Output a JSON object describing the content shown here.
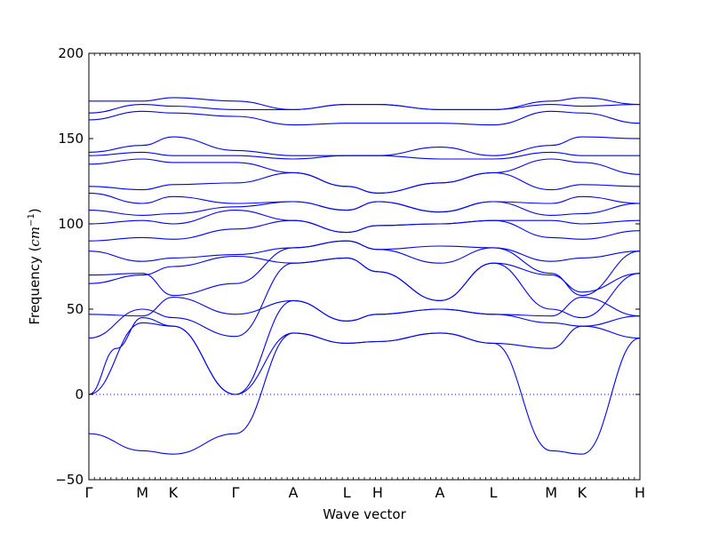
{
  "chart_data": {
    "type": "line",
    "title": "",
    "xlabel": "Wave vector",
    "ylabel": "Frequency ($cm^{-1}$)",
    "ylabel_parts": {
      "text": "Frequency (",
      "math": "cm",
      "sup": "−1",
      "close": ")"
    },
    "ylim": [
      -50,
      200
    ],
    "yticks": [
      -50,
      0,
      50,
      100,
      150,
      200
    ],
    "grid": false,
    "line_color": "#0000ff",
    "zero_line": {
      "y": 0,
      "style": "dotted",
      "color": "#0000ff"
    },
    "high_symmetry_points": [
      {
        "label": "Γ",
        "x": 0.0
      },
      {
        "label": "M",
        "x": 0.097
      },
      {
        "label": "K",
        "x": 0.153
      },
      {
        "label": "Γ",
        "x": 0.266
      },
      {
        "label": "A",
        "x": 0.371
      },
      {
        "label": "L",
        "x": 0.468
      },
      {
        "label": "H",
        "x": 0.524
      },
      {
        "label": "A",
        "x": 0.637
      },
      {
        "label": "L",
        "x": 0.734
      },
      {
        "label": "M",
        "x": 0.839
      },
      {
        "label": "K",
        "x": 0.895
      },
      {
        "label": "H",
        "x": 1.0
      }
    ],
    "series": [
      {
        "x": [
          0.0,
          0.097,
          0.153,
          0.266,
          0.371,
          0.468,
          0.524,
          0.637,
          0.734,
          0.839,
          0.895,
          1.0
        ],
        "values": [
          -23,
          -33,
          -35,
          -23,
          36,
          30,
          31,
          36,
          30,
          -33,
          -35,
          33
        ]
      },
      {
        "x": [
          0.0,
          0.05,
          0.097,
          0.153,
          0.266,
          0.371,
          0.468,
          0.524,
          0.637,
          0.734,
          0.839,
          0.895,
          1.0
        ],
        "values": [
          0,
          27,
          45,
          40,
          0,
          36,
          30,
          31,
          36,
          30,
          27,
          40,
          33
        ]
      },
      {
        "x": [
          0.0,
          0.097,
          0.153,
          0.266,
          0.371,
          0.468,
          0.524,
          0.637,
          0.734,
          0.839,
          0.895,
          1.0
        ],
        "values": [
          0,
          42,
          40,
          0,
          55,
          43,
          47,
          50,
          47,
          42,
          40,
          46
        ]
      },
      {
        "x": [
          0.0,
          0.097,
          0.153,
          0.266,
          0.371,
          0.468,
          0.524,
          0.637,
          0.734,
          0.839,
          0.895,
          1.0
        ],
        "values": [
          47,
          46,
          57,
          47,
          55,
          43,
          47,
          50,
          47,
          46,
          57,
          46
        ]
      },
      {
        "x": [
          0.0,
          0.097,
          0.153,
          0.266,
          0.371,
          0.468,
          0.524,
          0.637,
          0.734,
          0.839,
          0.895,
          1.0
        ],
        "values": [
          33,
          50,
          45,
          34,
          77,
          80,
          72,
          55,
          77,
          50,
          45,
          71
        ]
      },
      {
        "x": [
          0.0,
          0.097,
          0.153,
          0.266,
          0.371,
          0.468,
          0.524,
          0.637,
          0.734,
          0.839,
          0.895,
          1.0
        ],
        "values": [
          65,
          70,
          75,
          81,
          77,
          80,
          72,
          55,
          77,
          70,
          60,
          71
        ]
      },
      {
        "x": [
          0.0,
          0.097,
          0.153,
          0.266,
          0.371,
          0.468,
          0.524,
          0.637,
          0.734,
          0.839,
          0.895,
          1.0
        ],
        "values": [
          70,
          71,
          58,
          65,
          86,
          90,
          85,
          77,
          86,
          71,
          58,
          84
        ]
      },
      {
        "x": [
          0.0,
          0.097,
          0.153,
          0.266,
          0.371,
          0.468,
          0.524,
          0.637,
          0.734,
          0.839,
          0.895,
          1.0
        ],
        "values": [
          84,
          78,
          80,
          82,
          86,
          90,
          85,
          87,
          86,
          78,
          80,
          84
        ]
      },
      {
        "x": [
          0.0,
          0.097,
          0.153,
          0.266,
          0.371,
          0.468,
          0.524,
          0.637,
          0.734,
          0.839,
          0.895,
          1.0
        ],
        "values": [
          90,
          92,
          91,
          97,
          102,
          95,
          99,
          100,
          102,
          92,
          91,
          96
        ]
      },
      {
        "x": [
          0.0,
          0.097,
          0.153,
          0.266,
          0.371,
          0.468,
          0.524,
          0.637,
          0.734,
          0.839,
          0.895,
          1.0
        ],
        "values": [
          100,
          102,
          100,
          108,
          102,
          95,
          99,
          100,
          102,
          102,
          100,
          102
        ]
      },
      {
        "x": [
          0.0,
          0.097,
          0.153,
          0.266,
          0.371,
          0.468,
          0.524,
          0.637,
          0.734,
          0.839,
          0.895,
          1.0
        ],
        "values": [
          108,
          105,
          106,
          110,
          113,
          108,
          113,
          107,
          113,
          105,
          106,
          112
        ]
      },
      {
        "x": [
          0.0,
          0.097,
          0.153,
          0.266,
          0.371,
          0.468,
          0.524,
          0.637,
          0.734,
          0.839,
          0.895,
          1.0
        ],
        "values": [
          118,
          112,
          116,
          112,
          113,
          108,
          113,
          107,
          113,
          112,
          116,
          112
        ]
      },
      {
        "x": [
          0.0,
          0.097,
          0.153,
          0.266,
          0.371,
          0.468,
          0.524,
          0.637,
          0.734,
          0.839,
          0.895,
          1.0
        ],
        "values": [
          122,
          120,
          123,
          124,
          130,
          122,
          118,
          124,
          130,
          120,
          123,
          122
        ]
      },
      {
        "x": [
          0.0,
          0.097,
          0.153,
          0.266,
          0.371,
          0.468,
          0.524,
          0.637,
          0.734,
          0.839,
          0.895,
          1.0
        ],
        "values": [
          135,
          138,
          136,
          136,
          130,
          122,
          118,
          124,
          130,
          138,
          136,
          129
        ]
      },
      {
        "x": [
          0.0,
          0.097,
          0.153,
          0.266,
          0.371,
          0.468,
          0.524,
          0.637,
          0.734,
          0.839,
          0.895,
          1.0
        ],
        "values": [
          140,
          142,
          140,
          140,
          138,
          140,
          140,
          138,
          138,
          142,
          140,
          140
        ]
      },
      {
        "x": [
          0.0,
          0.097,
          0.153,
          0.266,
          0.371,
          0.468,
          0.524,
          0.637,
          0.734,
          0.839,
          0.895,
          1.0
        ],
        "values": [
          142,
          146,
          151,
          143,
          140,
          140,
          140,
          145,
          140,
          146,
          151,
          150
        ]
      },
      {
        "x": [
          0.0,
          0.097,
          0.153,
          0.266,
          0.371,
          0.468,
          0.524,
          0.637,
          0.734,
          0.839,
          0.895,
          1.0
        ],
        "values": [
          161,
          166,
          165,
          163,
          158,
          159,
          159,
          159,
          158,
          166,
          165,
          159
        ]
      },
      {
        "x": [
          0.0,
          0.097,
          0.153,
          0.266,
          0.371,
          0.468,
          0.524,
          0.637,
          0.734,
          0.839,
          0.895,
          1.0
        ],
        "values": [
          165,
          170,
          169,
          167,
          167,
          170,
          170,
          167,
          167,
          170,
          169,
          170
        ]
      },
      {
        "x": [
          0.0,
          0.097,
          0.153,
          0.266,
          0.371,
          0.468,
          0.524,
          0.637,
          0.734,
          0.839,
          0.895,
          1.0
        ],
        "values": [
          172,
          172,
          174,
          172,
          167,
          170,
          170,
          167,
          167,
          172,
          174,
          170
        ]
      }
    ]
  }
}
